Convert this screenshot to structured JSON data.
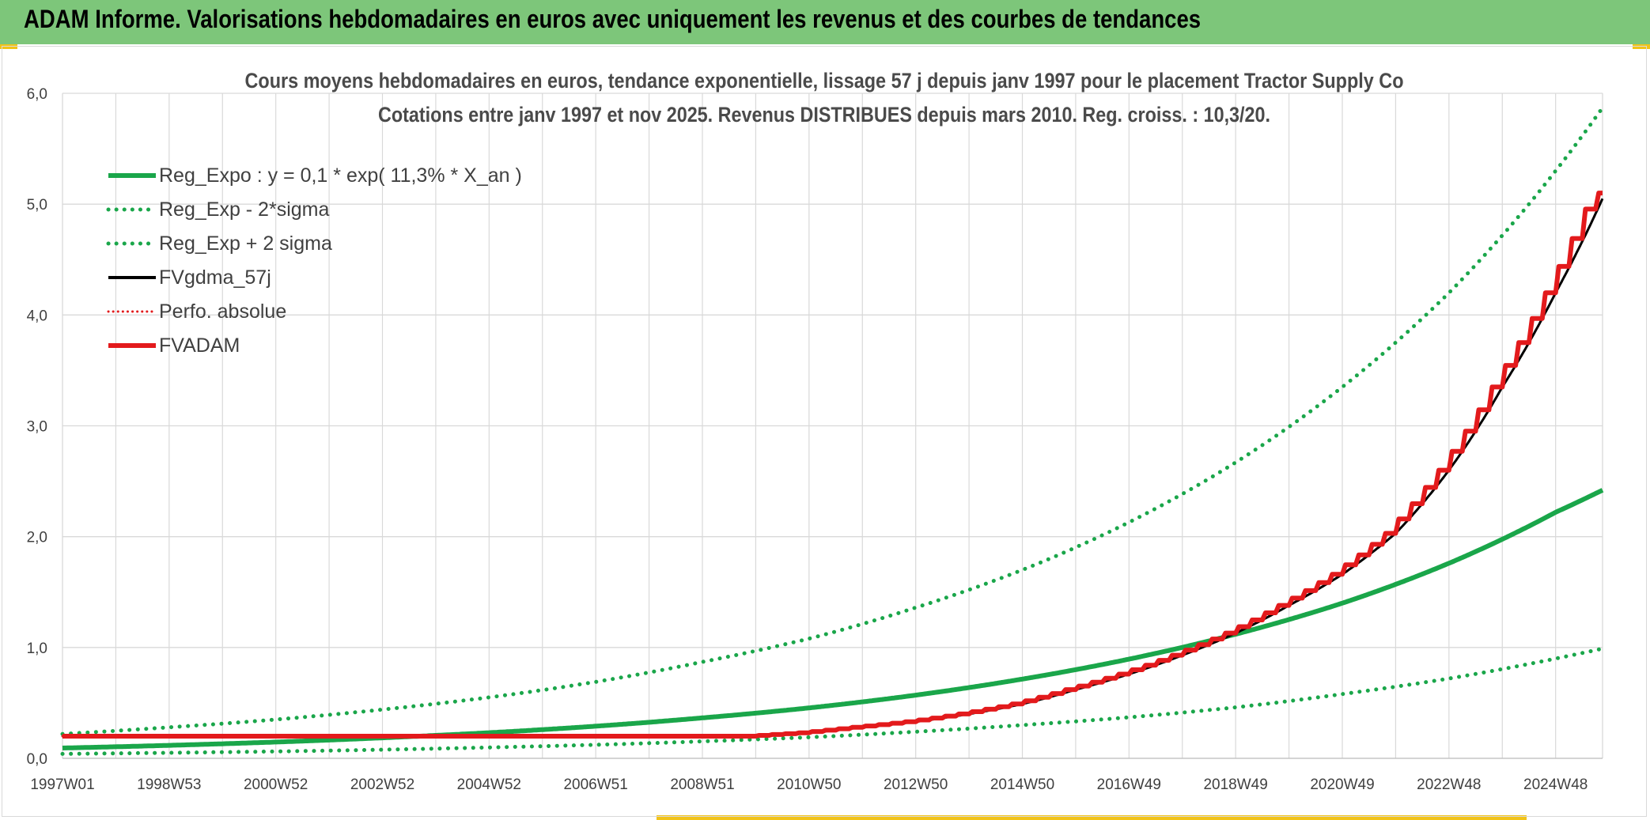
{
  "header": {
    "title": "ADAM Informe. Valorisations hebdomadaires en euros avec uniquement les revenus et des courbes de tendances"
  },
  "chart_data": {
    "type": "line",
    "title": "Cours moyens hebdomadaires en euros, tendance exponentielle, lissage 57 j depuis janv 1997 pour le placement Tractor Supply Co",
    "subtitle": "Cotations entre janv 1997 et nov 2025. Revenus DISTRIBUES depuis mars 2010. Reg. croiss. : 10,3/20.",
    "xlabel": "",
    "ylabel": "",
    "ylim": [
      0,
      6
    ],
    "yticks": [
      "0,0",
      "1,0",
      "2,0",
      "3,0",
      "4,0",
      "5,0",
      "6,0"
    ],
    "xlim": [
      1997.0,
      2025.88
    ],
    "xticks": [
      {
        "label": "1997W01",
        "x": 1997.0
      },
      {
        "label": "1998W53",
        "x": 1999.0
      },
      {
        "label": "2000W52",
        "x": 2001.0
      },
      {
        "label": "2002W52",
        "x": 2003.0
      },
      {
        "label": "2004W52",
        "x": 2005.0
      },
      {
        "label": "2006W51",
        "x": 2007.0
      },
      {
        "label": "2008W51",
        "x": 2009.0
      },
      {
        "label": "2010W50",
        "x": 2011.0
      },
      {
        "label": "2012W50",
        "x": 2013.0
      },
      {
        "label": "2014W50",
        "x": 2015.0
      },
      {
        "label": "2016W49",
        "x": 2017.0
      },
      {
        "label": "2018W49",
        "x": 2019.0
      },
      {
        "label": "2020W49",
        "x": 2021.0
      },
      {
        "label": "2022W48",
        "x": 2023.0
      },
      {
        "label": "2024W48",
        "x": 2025.0
      }
    ],
    "grid": true,
    "legend_position": "top-left",
    "series": [
      {
        "name": "Reg_Expo : y = 0,1 * exp( 11,3% *  X_an )",
        "color": "#1aa64a",
        "style": "solid",
        "x": [
          1997.0,
          1999.0,
          2001.0,
          2003.0,
          2005.0,
          2007.0,
          2009.0,
          2011.0,
          2013.0,
          2015.0,
          2017.0,
          2019.0,
          2021.0,
          2023.0,
          2025.0,
          2025.88
        ],
        "y": [
          0.093,
          0.117,
          0.147,
          0.185,
          0.231,
          0.29,
          0.365,
          0.455,
          0.57,
          0.715,
          0.895,
          1.12,
          1.4,
          1.76,
          2.22,
          2.42
        ]
      },
      {
        "name": "Reg_Exp - 2*sigma",
        "color": "#1aa64a",
        "style": "dotted",
        "x": [
          1997.0,
          1999.0,
          2001.0,
          2003.0,
          2005.0,
          2007.0,
          2009.0,
          2011.0,
          2013.0,
          2015.0,
          2017.0,
          2019.0,
          2021.0,
          2023.0,
          2025.0,
          2025.88
        ],
        "y": [
          0.04,
          0.05,
          0.062,
          0.078,
          0.098,
          0.122,
          0.153,
          0.19,
          0.24,
          0.3,
          0.37,
          0.46,
          0.58,
          0.72,
          0.9,
          0.99
        ]
      },
      {
        "name": "Reg_Exp + 2 sigma",
        "color": "#1aa64a",
        "style": "dotted",
        "x": [
          1997.0,
          1999.0,
          2001.0,
          2003.0,
          2005.0,
          2007.0,
          2009.0,
          2011.0,
          2013.0,
          2015.0,
          2017.0,
          2019.0,
          2021.0,
          2023.0,
          2025.0,
          2025.88
        ],
        "y": [
          0.22,
          0.28,
          0.35,
          0.44,
          0.55,
          0.69,
          0.87,
          1.08,
          1.36,
          1.7,
          2.13,
          2.67,
          3.35,
          4.2,
          5.3,
          5.87
        ]
      },
      {
        "name": "FVgdma_57j",
        "color": "#000000",
        "style": "solid",
        "x": [
          1997.0,
          2000.0,
          2003.0,
          2006.0,
          2009.0,
          2010.0,
          2011.0,
          2012.0,
          2013.0,
          2014.0,
          2015.0,
          2016.0,
          2017.0,
          2018.0,
          2019.0,
          2020.0,
          2021.0,
          2022.0,
          2023.0,
          2024.0,
          2025.0,
          2025.88
        ],
        "y": [
          0.2,
          0.2,
          0.2,
          0.2,
          0.2,
          0.2,
          0.23,
          0.28,
          0.33,
          0.4,
          0.49,
          0.62,
          0.76,
          0.93,
          1.13,
          1.38,
          1.66,
          2.03,
          2.6,
          3.35,
          4.2,
          5.05
        ]
      },
      {
        "name": "Perfo. absolue",
        "color": "#e31a1c",
        "style": "dotted",
        "x": [
          1997.0,
          2000.0,
          2003.0,
          2006.0,
          2009.0,
          2010.0,
          2011.0,
          2012.0,
          2013.0,
          2014.0,
          2015.0,
          2016.0,
          2017.0,
          2018.0,
          2019.0,
          2020.0,
          2021.0,
          2022.0,
          2023.0,
          2024.0,
          2025.0,
          2025.88
        ],
        "y": [
          0.2,
          0.2,
          0.2,
          0.2,
          0.2,
          0.2,
          0.23,
          0.28,
          0.33,
          0.4,
          0.49,
          0.62,
          0.76,
          0.93,
          1.13,
          1.38,
          1.66,
          2.03,
          2.6,
          3.35,
          4.2,
          5.05
        ]
      },
      {
        "name": "FVADAM",
        "color": "#e31a1c",
        "style": "solid",
        "stepped": true,
        "x": [
          1997.0,
          2000.0,
          2003.0,
          2006.0,
          2009.0,
          2010.0,
          2011.0,
          2012.0,
          2013.0,
          2014.0,
          2015.0,
          2016.0,
          2017.0,
          2018.0,
          2019.0,
          2020.0,
          2021.0,
          2022.0,
          2023.0,
          2024.0,
          2025.0,
          2025.88
        ],
        "y": [
          0.2,
          0.2,
          0.2,
          0.2,
          0.2,
          0.2,
          0.23,
          0.28,
          0.33,
          0.4,
          0.49,
          0.62,
          0.76,
          0.93,
          1.13,
          1.38,
          1.66,
          2.03,
          2.6,
          3.35,
          4.2,
          5.1
        ]
      }
    ]
  }
}
